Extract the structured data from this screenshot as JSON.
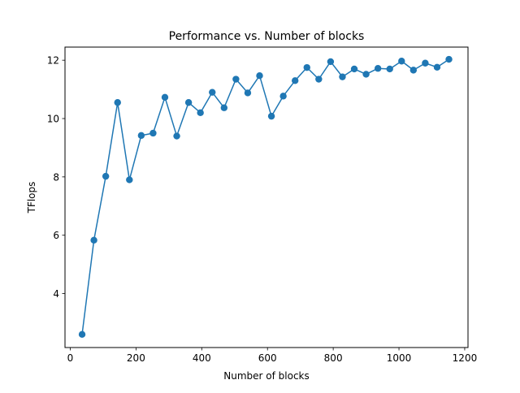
{
  "chart_data": {
    "type": "line",
    "title": "Performance vs. Number of blocks",
    "xlabel": "Number of blocks",
    "ylabel": "TFlops",
    "xlim": [
      -16,
      1210
    ],
    "ylim": [
      2.15,
      12.45
    ],
    "xticks": [
      0,
      200,
      400,
      600,
      800,
      1000,
      1200
    ],
    "yticks": [
      4,
      6,
      8,
      10,
      12
    ],
    "grid": false,
    "legend": "none",
    "color": "#1f77b4",
    "series": [
      {
        "marker": "circle",
        "x": [
          36,
          72,
          108,
          144,
          180,
          216,
          252,
          288,
          324,
          360,
          396,
          432,
          468,
          504,
          540,
          576,
          612,
          648,
          684,
          720,
          756,
          792,
          828,
          864,
          900,
          936,
          972,
          1008,
          1044,
          1080,
          1116,
          1152
        ],
        "y": [
          2.6,
          5.83,
          8.02,
          10.55,
          7.9,
          9.42,
          9.5,
          10.73,
          9.4,
          10.55,
          10.2,
          10.9,
          10.37,
          11.35,
          10.88,
          11.47,
          10.08,
          10.77,
          11.3,
          11.75,
          11.35,
          11.95,
          11.43,
          11.7,
          11.52,
          11.72,
          11.7,
          11.97,
          11.66,
          11.9,
          11.76,
          12.03
        ]
      }
    ]
  }
}
